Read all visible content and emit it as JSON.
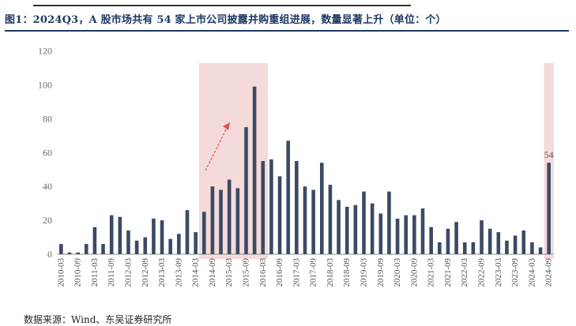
{
  "header": {
    "title": "图1：2024Q3，A 股市场共有 54 家上市公司披露并购重组进展，数量显著上升（单位：个）"
  },
  "footer": {
    "source": "数据来源：Wind、东吴证券研究所"
  },
  "colors": {
    "bar": "#3b4a63",
    "highlight": "#f4dada",
    "arrow": "#d9534f",
    "axis": "#8c8c8c",
    "title": "#1f3864"
  },
  "chart_data": {
    "type": "bar",
    "ylim": [
      0,
      120
    ],
    "yticks": [
      0,
      20,
      40,
      60,
      80,
      100,
      120
    ],
    "grid": false,
    "xlabel": "",
    "ylabel": "",
    "categories": [
      "2010-03",
      "2010-06",
      "2010-09",
      "2010-12",
      "2011-03",
      "2011-06",
      "2011-09",
      "2011-12",
      "2012-03",
      "2012-06",
      "2012-09",
      "2012-12",
      "2013-03",
      "2013-06",
      "2013-09",
      "2013-12",
      "2014-03",
      "2014-06",
      "2014-09",
      "2014-12",
      "2015-03",
      "2015-06",
      "2015-09",
      "2015-12",
      "2016-03",
      "2016-06",
      "2016-09",
      "2016-12",
      "2017-03",
      "2017-06",
      "2017-09",
      "2017-12",
      "2018-03",
      "2018-06",
      "2018-09",
      "2018-12",
      "2019-03",
      "2019-06",
      "2019-09",
      "2019-12",
      "2020-03",
      "2020-06",
      "2020-09",
      "2020-12",
      "2021-03",
      "2021-06",
      "2021-09",
      "2021-12",
      "2022-03",
      "2022-06",
      "2022-09",
      "2022-12",
      "2023-03",
      "2023-06",
      "2023-09",
      "2023-12",
      "2024-03",
      "2024-06",
      "2024-09"
    ],
    "values": [
      6,
      1,
      1,
      6,
      16,
      6,
      23,
      22,
      14,
      8,
      10,
      21,
      20,
      9,
      12,
      26,
      13,
      25,
      40,
      38,
      44,
      39,
      75,
      99,
      55,
      56,
      46,
      67,
      55,
      40,
      38,
      54,
      41,
      32,
      28,
      29,
      37,
      30,
      24,
      37,
      21,
      23,
      23,
      27,
      16,
      7,
      15,
      19,
      7,
      7,
      20,
      15,
      13,
      8,
      11,
      14,
      7,
      4,
      54
    ],
    "data_labels": [
      {
        "category": "2024-09",
        "text": "54"
      }
    ],
    "highlighted_ranges": [
      [
        "2014-06",
        "2016-03"
      ],
      [
        "2024-09",
        "2024-09"
      ]
    ]
  }
}
